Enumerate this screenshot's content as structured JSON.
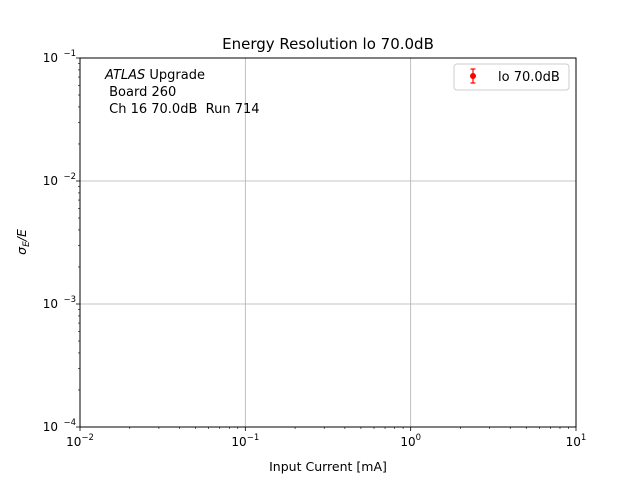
{
  "chart_data": {
    "type": "scatter",
    "title": "Energy Resolution lo 70.0dB",
    "xlabel": "Input Current [mA]",
    "ylabel_symbol": "σ",
    "ylabel_subscript": "E",
    "ylabel_suffix": "/E",
    "xscale": "log",
    "yscale": "log",
    "xlim": [
      0.01,
      10
    ],
    "ylim": [
      0.0001,
      0.1
    ],
    "grid": true,
    "x_ticks": [
      {
        "value": 0.01,
        "base": "10",
        "exp": "−2"
      },
      {
        "value": 0.1,
        "base": "10",
        "exp": "−1"
      },
      {
        "value": 1,
        "base": "10",
        "exp": "0"
      },
      {
        "value": 10,
        "base": "10",
        "exp": "1"
      }
    ],
    "y_ticks": [
      {
        "value": 0.0001,
        "base": "10",
        "exp": "−4"
      },
      {
        "value": 0.001,
        "base": "10",
        "exp": "−3"
      },
      {
        "value": 0.01,
        "base": "10",
        "exp": "−2"
      },
      {
        "value": 0.1,
        "base": "10",
        "exp": "−1"
      }
    ],
    "annotation": {
      "atlas": "ATLAS",
      "line1_rest": " Upgrade",
      "line2": " Board 260",
      "line3": " Ch 16 70.0dB  Run 714"
    },
    "legend": {
      "placement": "top-right",
      "color": "#ff0000"
    },
    "series": [
      {
        "name": "lo 70.0dB",
        "color": "#ff0000",
        "marker": "circle-errorbar",
        "x": [],
        "y": []
      }
    ]
  }
}
